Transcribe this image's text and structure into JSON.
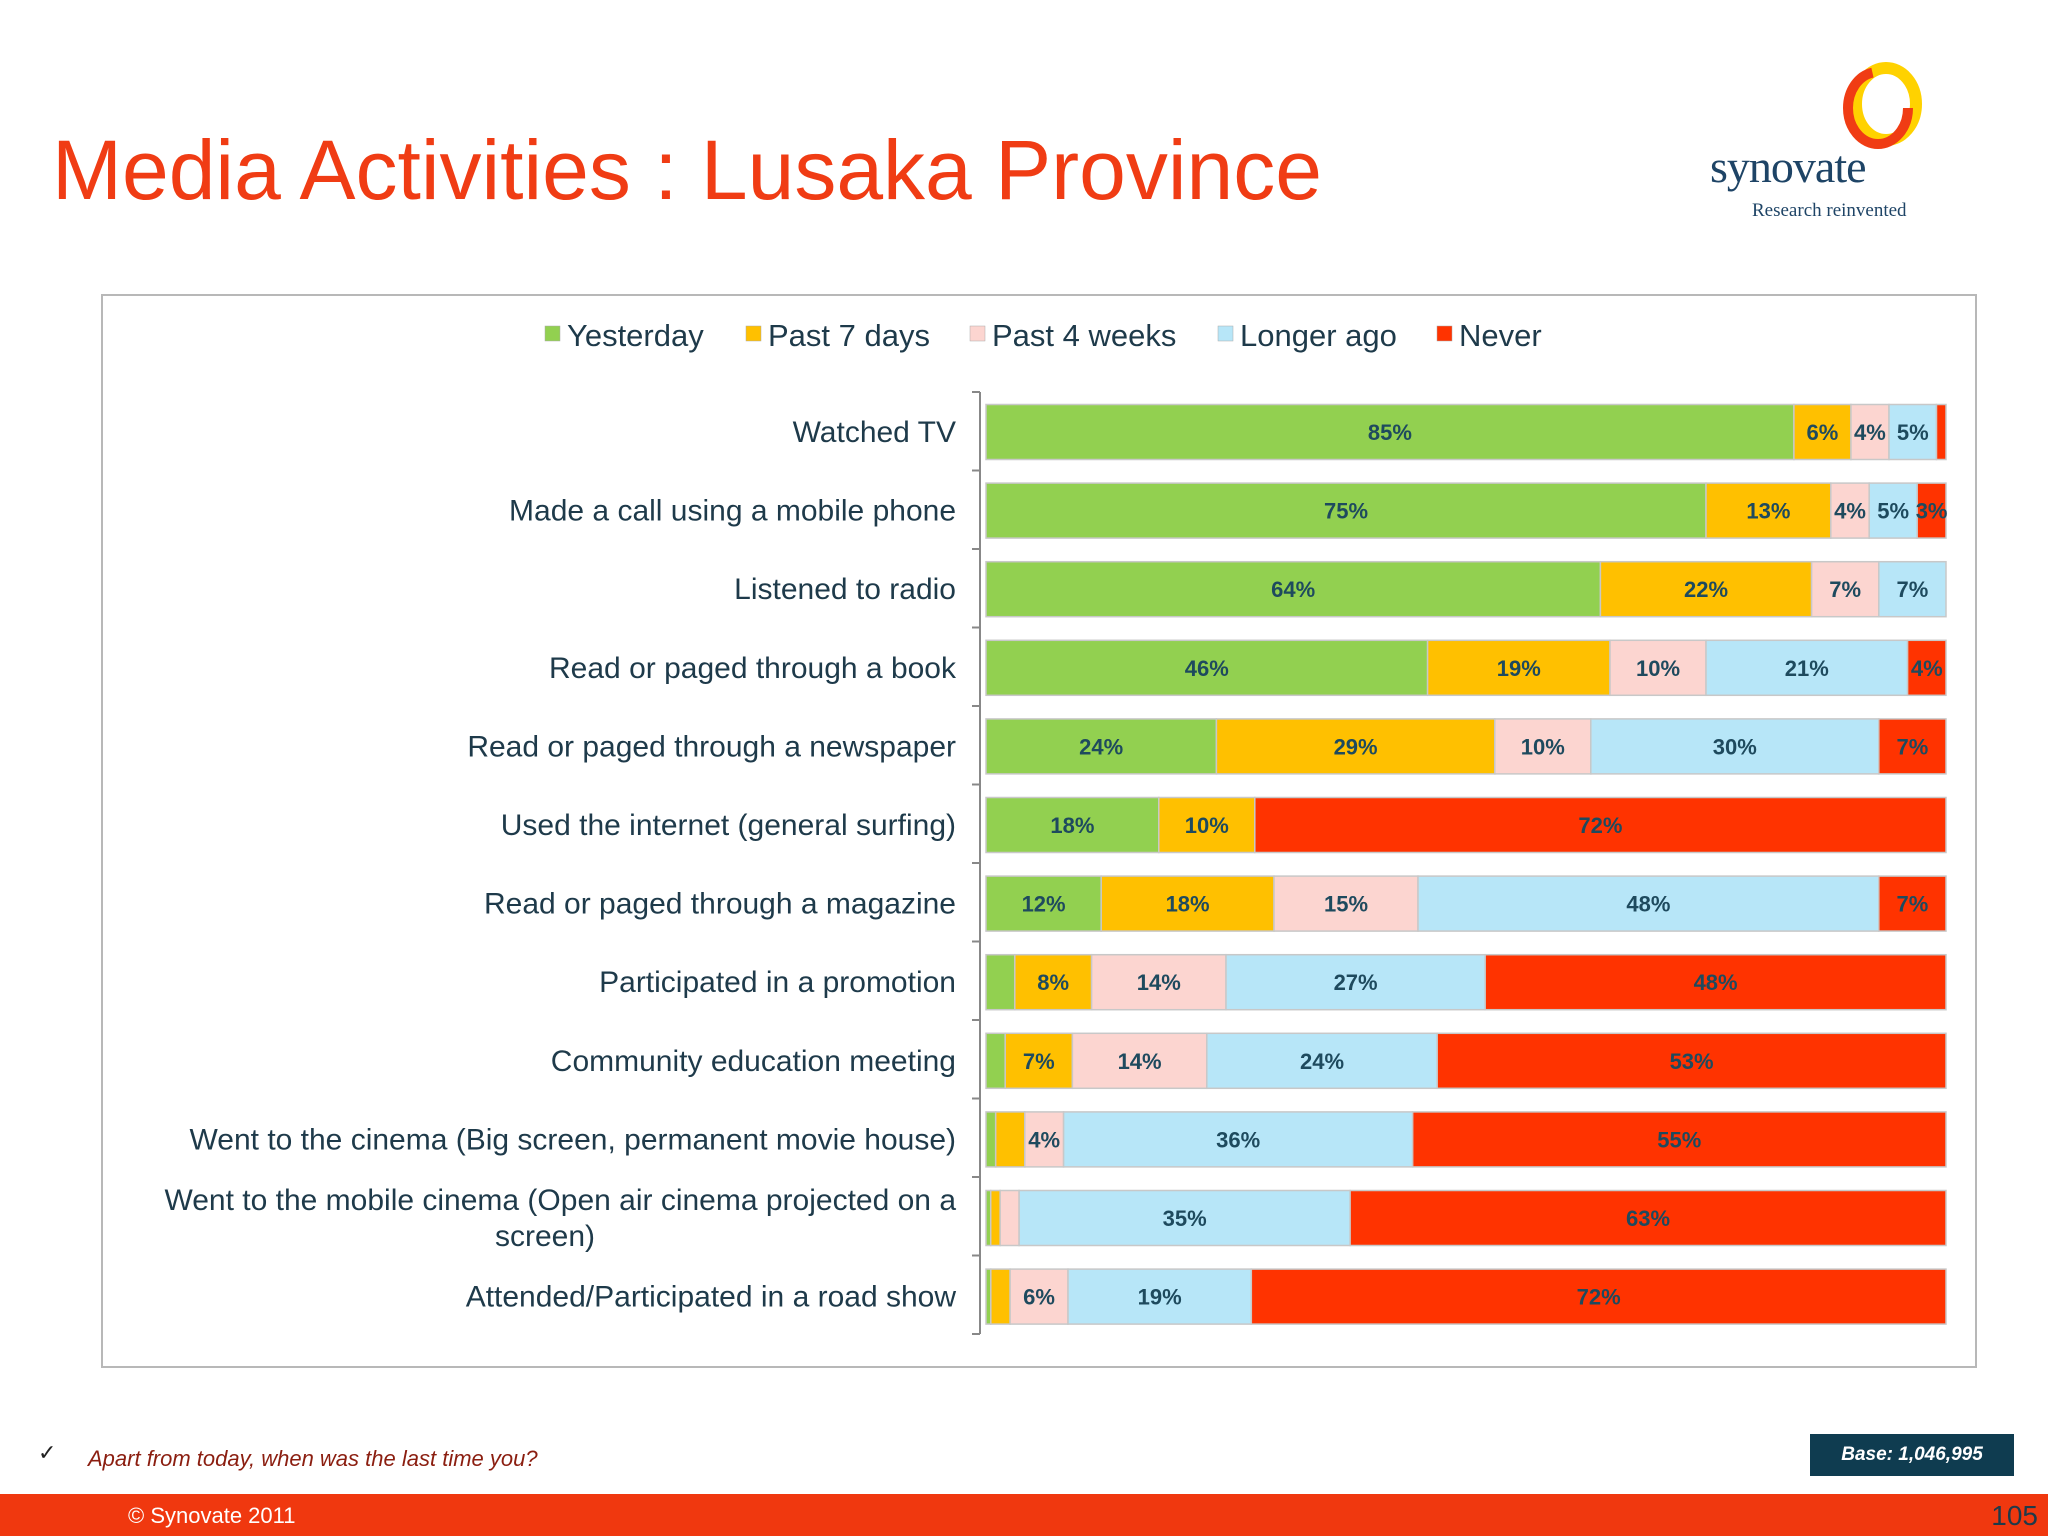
{
  "slide": {
    "title": "Media Activities : Lusaka Province",
    "logo_name": "synovate",
    "logo_tagline": "Research reinvented",
    "question": "Apart from today, when was the last time you?",
    "base": "Base: 1,046,995",
    "copyright": "© Synovate 2011",
    "page_number": "105",
    "check_mark": "✓"
  },
  "chart_data": {
    "type": "bar",
    "orientation": "horizontal",
    "stacked": true,
    "categories": [
      "Watched TV",
      "Made a call using a mobile phone",
      "Listened to radio",
      "Read or paged through a book",
      "Read or paged through a newspaper",
      "Used the internet (general surfing)",
      "Read or paged through a magazine",
      "Participated in a promotion",
      "Community education meeting",
      "Went to the cinema (Big screen, permanent movie house)",
      "Went to the mobile cinema (Open air cinema projected on a screen)",
      "Attended/Participated in a road show"
    ],
    "series": [
      {
        "name": "Yesterday",
        "color": "#92d050",
        "values": [
          85,
          75,
          64,
          46,
          24,
          18,
          12,
          3,
          2,
          1,
          0.5,
          0.5
        ]
      },
      {
        "name": "Past 7 days",
        "color": "#ffc000",
        "values": [
          6,
          13,
          22,
          19,
          29,
          10,
          18,
          8,
          7,
          3,
          1,
          2
        ]
      },
      {
        "name": "Past 4 weeks",
        "color": "#fcd5d0",
        "values": [
          4,
          4,
          7,
          10,
          10,
          0,
          15,
          14,
          14,
          4,
          2,
          6
        ]
      },
      {
        "name": "Longer ago",
        "color": "#b7e6f8",
        "values": [
          5,
          5,
          7,
          21,
          30,
          0,
          48,
          27,
          24,
          36,
          35,
          19
        ]
      },
      {
        "name": "Never",
        "color": "#ff3300",
        "values": [
          1,
          3,
          0,
          4,
          7,
          72,
          7,
          48,
          53,
          55,
          63,
          72
        ]
      }
    ],
    "labels": [
      [
        "85%",
        "6%",
        "4%",
        "5%",
        ""
      ],
      [
        "75%",
        "13%",
        "4%",
        "5%",
        "3%"
      ],
      [
        "64%",
        "22%",
        "7%",
        "7%",
        ""
      ],
      [
        "46%",
        "19%",
        "10%",
        "21%",
        "4%"
      ],
      [
        "24%",
        "29%",
        "10%",
        "30%",
        "7%"
      ],
      [
        "18%",
        "10%",
        "",
        "",
        "72%"
      ],
      [
        "12%",
        "18%",
        "15%",
        "48%",
        "7%"
      ],
      [
        "",
        "8%",
        "14%",
        "27%",
        "48%"
      ],
      [
        "",
        "7%",
        "14%",
        "24%",
        "53%"
      ],
      [
        "",
        "",
        "4%",
        "36%",
        "55%"
      ],
      [
        "",
        "",
        "",
        "35%",
        "63%"
      ],
      [
        "",
        "",
        "6%",
        "19%",
        "72%"
      ]
    ],
    "legend_position": "top",
    "grid": false
  }
}
